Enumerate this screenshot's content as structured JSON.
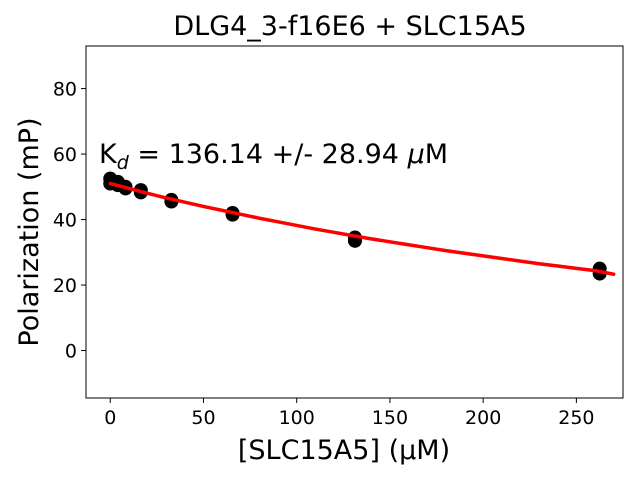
{
  "chart_data": {
    "type": "scatter",
    "title": "DLG4_3-f16E6 + SLC15A5",
    "xlabel": "[SLC15A5] (μM)",
    "ylabel": "Polarization (mP)",
    "annotation": {
      "prefix": "K",
      "subscript": "d",
      "text": " = 136.14 +/- 28.94 ",
      "unit_symbol": "μ",
      "unit": "M"
    },
    "xlim": [
      -13,
      275
    ],
    "ylim": [
      -14.5,
      93
    ],
    "xticks": [
      0,
      50,
      100,
      150,
      200,
      250
    ],
    "yticks": [
      0,
      20,
      40,
      60,
      80
    ],
    "grid": false,
    "fit_color": "#ff0000",
    "point_color": "#000000",
    "fit_curve": {
      "x": [
        0,
        10,
        20,
        30,
        40,
        50,
        60,
        70,
        80,
        90,
        100,
        110,
        120,
        130,
        140,
        150,
        160,
        170,
        180,
        190,
        200,
        210,
        220,
        230,
        240,
        250,
        260,
        270
      ],
      "y": [
        51.0,
        49.5,
        48.0,
        46.6,
        45.3,
        44.0,
        42.8,
        41.6,
        40.4,
        39.3,
        38.2,
        37.1,
        36.1,
        35.1,
        34.1,
        33.2,
        32.3,
        31.4,
        30.5,
        29.7,
        28.9,
        28.1,
        27.3,
        26.5,
        25.8,
        25.1,
        24.4,
        23.3
      ]
    },
    "points": [
      {
        "x": 0,
        "y": 52.5
      },
      {
        "x": 0,
        "y": 51.0
      },
      {
        "x": 4.1,
        "y": 51.5
      },
      {
        "x": 4.1,
        "y": 50.5
      },
      {
        "x": 8.2,
        "y": 50.0
      },
      {
        "x": 8.2,
        "y": 49.5
      },
      {
        "x": 16.4,
        "y": 49.0
      },
      {
        "x": 16.4,
        "y": 48.3
      },
      {
        "x": 32.8,
        "y": 46.0
      },
      {
        "x": 32.8,
        "y": 45.5
      },
      {
        "x": 65.6,
        "y": 42.0
      },
      {
        "x": 65.6,
        "y": 41.5
      },
      {
        "x": 131.25,
        "y": 34.5
      },
      {
        "x": 131.25,
        "y": 33.5
      },
      {
        "x": 262.5,
        "y": 25.0
      },
      {
        "x": 262.5,
        "y": 23.5
      }
    ]
  }
}
